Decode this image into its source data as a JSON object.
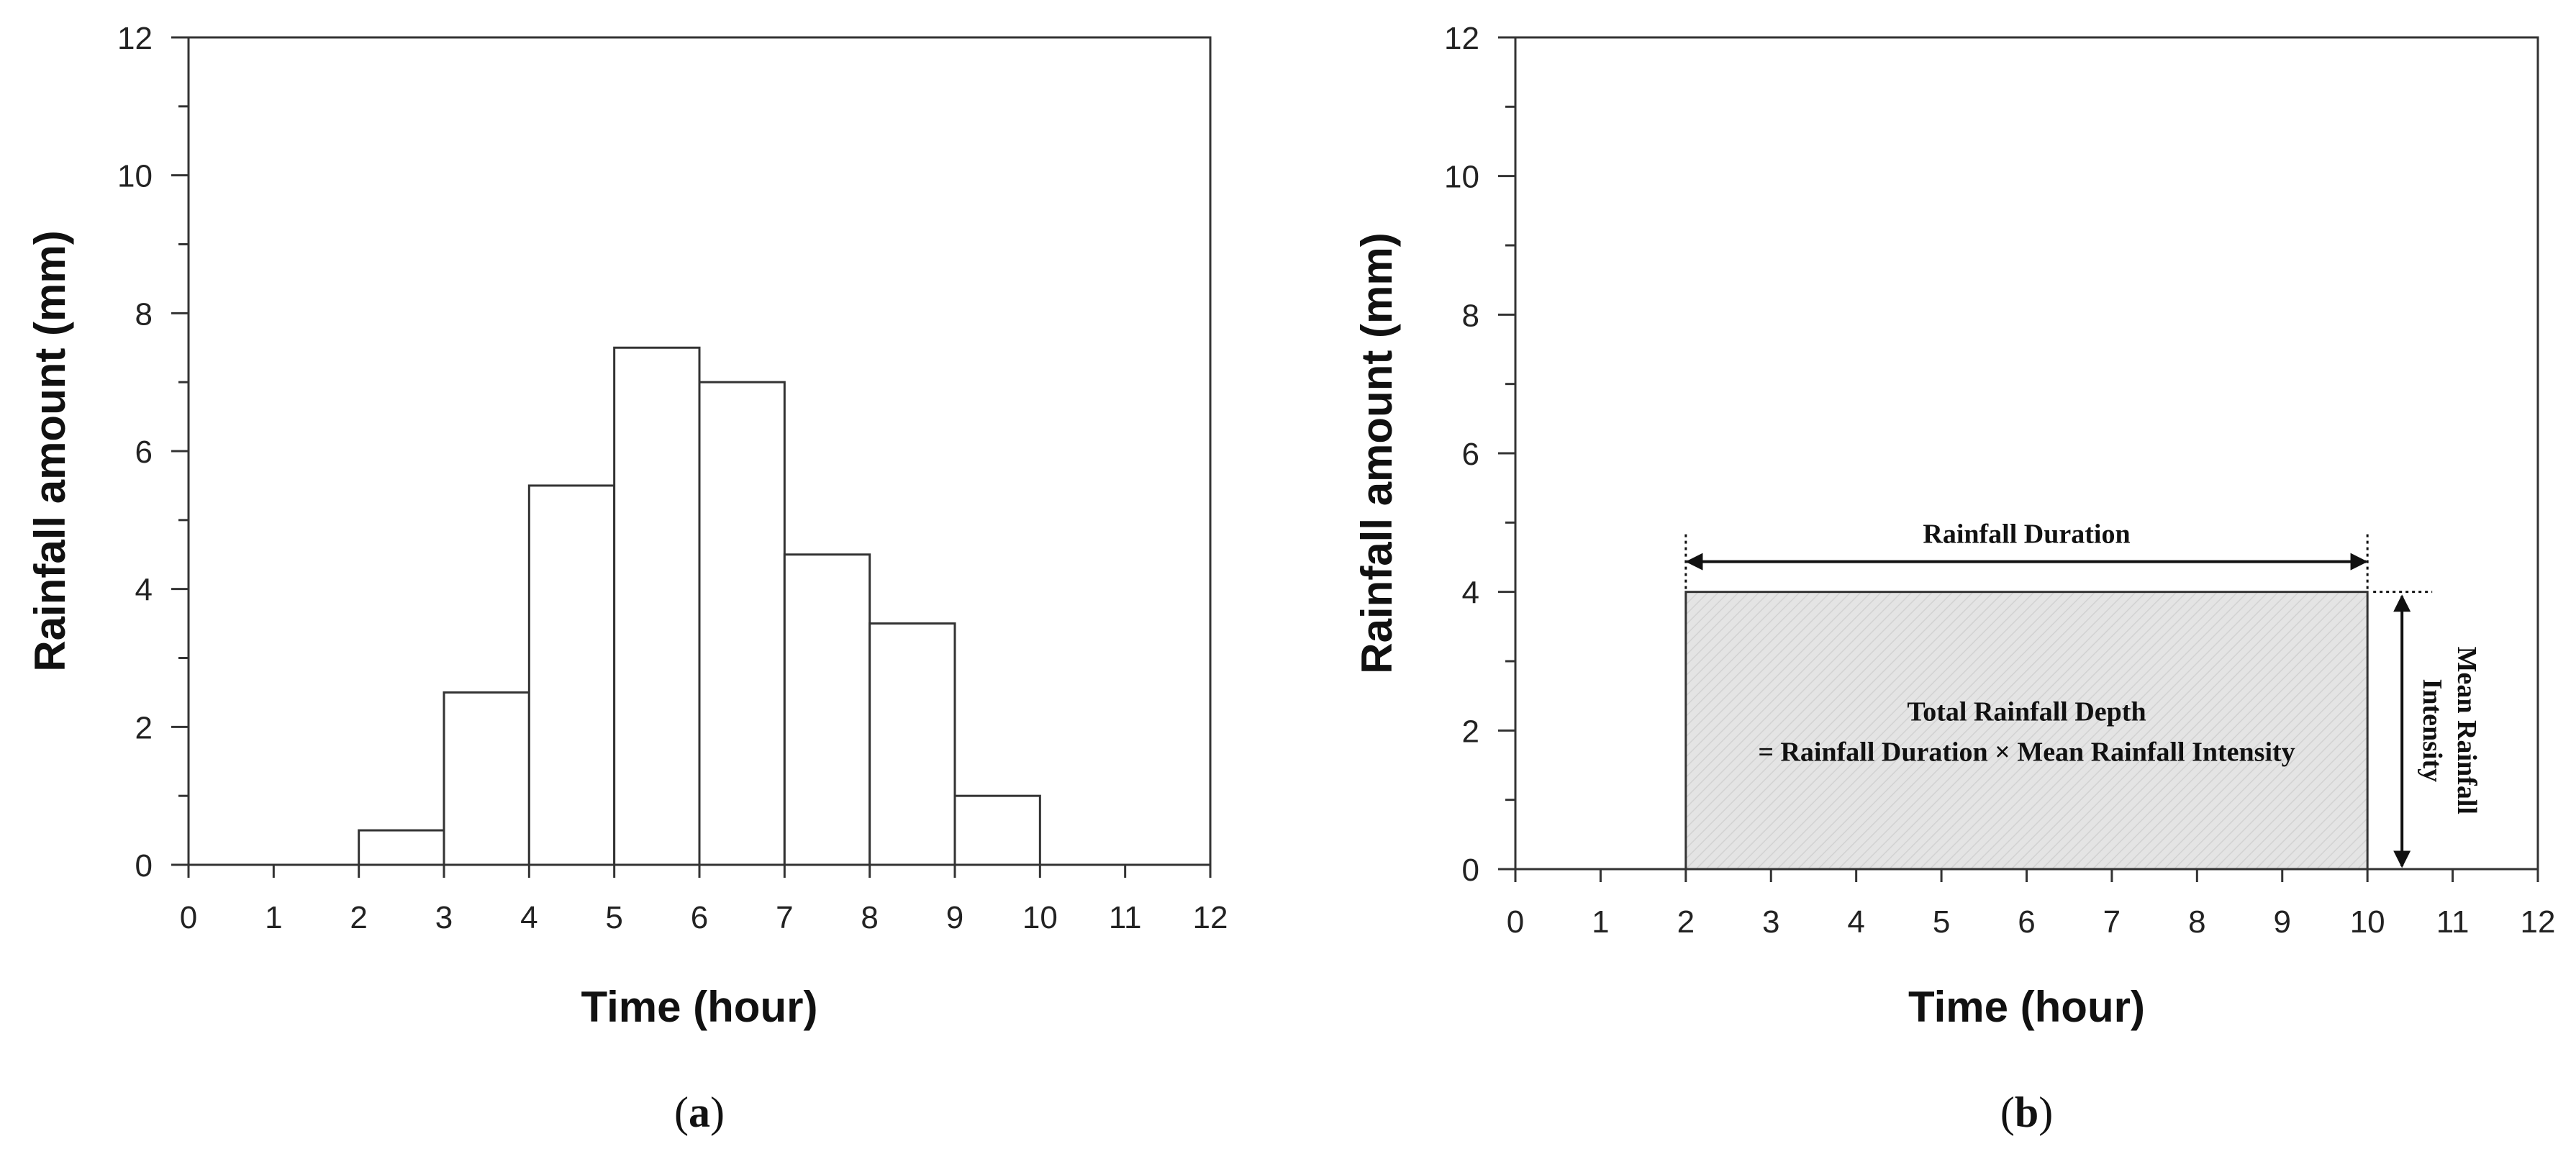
{
  "chart_data": [
    {
      "type": "bar",
      "panel_label": "a",
      "xlabel": "Time (hour)",
      "ylabel": "Rainfall amount (mm)",
      "xlim": [
        0,
        12
      ],
      "ylim": [
        0,
        12
      ],
      "xticks": [
        0,
        1,
        2,
        3,
        4,
        5,
        6,
        7,
        8,
        9,
        10,
        11,
        12
      ],
      "yticks": [
        0,
        2,
        4,
        6,
        8,
        10,
        12
      ],
      "bins": [
        {
          "start": 2,
          "end": 3,
          "value": 0.5
        },
        {
          "start": 3,
          "end": 4,
          "value": 2.5
        },
        {
          "start": 4,
          "end": 5,
          "value": 5.5
        },
        {
          "start": 5,
          "end": 6,
          "value": 7.5
        },
        {
          "start": 6,
          "end": 7,
          "value": 7.0
        },
        {
          "start": 7,
          "end": 8,
          "value": 4.5
        },
        {
          "start": 8,
          "end": 9,
          "value": 3.5
        },
        {
          "start": 9,
          "end": 10,
          "value": 1.0
        }
      ],
      "grid": false,
      "bar_fill": "#ffffff",
      "bar_edge": "#333333"
    },
    {
      "type": "bar",
      "panel_label": "b",
      "xlabel": "Time (hour)",
      "ylabel": "Rainfall amount (mm)",
      "xlim": [
        0,
        12
      ],
      "ylim": [
        0,
        12
      ],
      "xticks": [
        0,
        1,
        2,
        3,
        4,
        5,
        6,
        7,
        8,
        9,
        10,
        11,
        12
      ],
      "yticks": [
        0,
        2,
        4,
        6,
        8,
        10,
        12
      ],
      "bins": [
        {
          "start": 2,
          "end": 10,
          "value": 4
        }
      ],
      "grid": false,
      "bar_fill": "#e6e6e6",
      "bar_edge": "#333333",
      "annotations": {
        "duration_label": "Rainfall Duration",
        "depth_line1": "Total Rainfall Depth",
        "depth_line2": "= Rainfall Duration × Mean Rainfall Intensity",
        "intensity_line1": "Mean Rainfall",
        "intensity_line2": "Intensity"
      }
    }
  ]
}
